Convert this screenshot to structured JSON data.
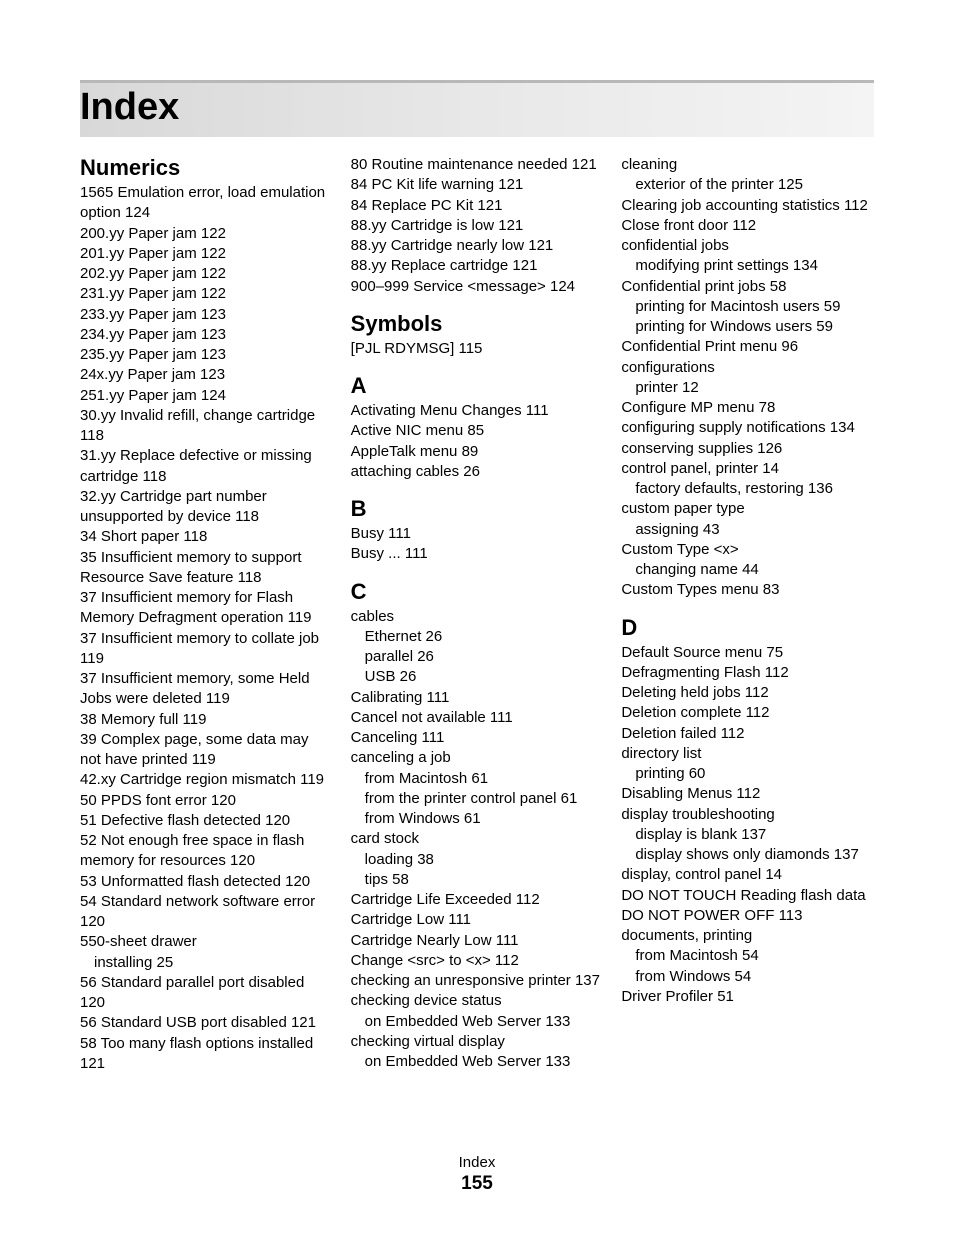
{
  "title": "Index",
  "footer_label": "Index",
  "page_number": "155",
  "col1": {
    "h1": "Numerics",
    "e": [
      "1565 Emulation error, load emulation option  124",
      "200.yy Paper jam  122",
      "201.yy Paper jam  122",
      "202.yy Paper jam  122",
      "231.yy Paper jam  122",
      "233.yy Paper jam  123",
      "234.yy Paper jam  123",
      "235.yy Paper jam  123",
      "24x.yy Paper jam  123",
      "251.yy Paper jam  124",
      "30.yy Invalid refill, change cartridge  118",
      "31.yy Replace defective or missing cartridge  118",
      "32.yy Cartridge part number unsupported by device  118",
      "34 Short paper  118",
      "35 Insufficient memory to support Resource Save feature  118",
      "37 Insufficient memory for Flash Memory Defragment operation  119",
      "37 Insufficient memory to collate job  119",
      "37 Insufficient memory, some Held Jobs were deleted  119",
      "38 Memory full  119",
      "39 Complex page, some data may not have printed  119",
      "42.xy Cartridge region mismatch  119",
      "50 PPDS font error  120",
      "51 Defective flash detected  120",
      "52 Not enough free space in flash memory for resources  120",
      "53 Unformatted flash detected  120",
      "54 Standard network software error  120",
      "550-sheet drawer",
      {
        "t": "installing  25",
        "lvl": 1
      },
      "56 Standard parallel port disabled  120",
      "56 Standard USB port disabled  121",
      "58 Too many flash options installed  121"
    ]
  },
  "col2": {
    "top": [
      "80 Routine maintenance needed  121",
      "84 PC Kit life warning  121",
      "84 Replace PC Kit  121",
      "88.yy Cartridge is low  121",
      "88.yy Cartridge nearly low  121",
      "88.yy Replace cartridge  121",
      "900–999 Service <message>  124"
    ],
    "h_symbols": "Symbols",
    "symbols": [
      "[PJL RDYMSG]  115"
    ],
    "h_a": "A",
    "a": [
      "Activating Menu Changes  111",
      "Active NIC menu  85",
      "AppleTalk menu  89",
      "attaching cables  26"
    ],
    "h_b": "B",
    "b": [
      "Busy  111",
      "Busy ...  111"
    ],
    "h_c": "C",
    "c": [
      "cables",
      {
        "t": "Ethernet  26",
        "lvl": 1
      },
      {
        "t": "parallel  26",
        "lvl": 1
      },
      {
        "t": "USB  26",
        "lvl": 1
      },
      "Calibrating  111",
      "Cancel not available  111",
      "Canceling  111",
      "canceling a job",
      {
        "t": "from Macintosh  61",
        "lvl": 1
      },
      {
        "t": "from the printer control panel  61",
        "lvl": 1
      },
      {
        "t": "from Windows  61",
        "lvl": 1
      },
      "card stock",
      {
        "t": "loading  38",
        "lvl": 1
      },
      {
        "t": "tips  58",
        "lvl": 1
      },
      "Cartridge Life Exceeded  112",
      "Cartridge Low  111",
      "Cartridge Nearly Low  111",
      "Change <src> to <x>  112",
      "checking an unresponsive printer  137",
      "checking device status",
      {
        "t": "on Embedded Web Server  133",
        "lvl": 1
      },
      "checking virtual display",
      {
        "t": "on Embedded Web Server  133",
        "lvl": 1
      }
    ]
  },
  "col3": {
    "top": [
      "cleaning",
      {
        "t": "exterior of the printer  125",
        "lvl": 1
      },
      "Clearing job accounting statistics  112",
      "Close front door  112",
      "confidential jobs",
      {
        "t": "modifying print settings  134",
        "lvl": 1
      },
      "Confidential print jobs  58",
      {
        "t": "printing for Macintosh users  59",
        "lvl": 1
      },
      {
        "t": "printing for Windows users  59",
        "lvl": 1
      },
      "Confidential Print menu  96",
      "configurations",
      {
        "t": "printer  12",
        "lvl": 1
      },
      "Configure MP menu  78",
      "configuring supply notifications  134",
      "conserving supplies  126",
      "control panel, printer  14",
      {
        "t": "factory defaults, restoring  136",
        "lvl": 1
      },
      "custom paper type",
      {
        "t": "assigning  43",
        "lvl": 1
      },
      "Custom Type <x>",
      {
        "t": "changing name  44",
        "lvl": 1
      },
      "Custom Types menu  83"
    ],
    "h_d": "D",
    "d": [
      "Default Source menu  75",
      "Defragmenting Flash  112",
      "Deleting held jobs  112",
      "Deletion complete  112",
      "Deletion failed  112",
      "directory list",
      {
        "t": "printing  60",
        "lvl": 1
      },
      "Disabling Menus  112",
      "display troubleshooting",
      {
        "t": "display is blank  137",
        "lvl": 1
      },
      {
        "t": "display shows only diamonds  137",
        "lvl": 1
      },
      "display, control panel  14",
      "DO NOT TOUCH Reading flash data DO NOT POWER OFF  113",
      "documents, printing",
      {
        "t": "from Macintosh  54",
        "lvl": 1
      },
      {
        "t": "from Windows  54",
        "lvl": 1
      },
      "Driver Profiler  51"
    ]
  }
}
